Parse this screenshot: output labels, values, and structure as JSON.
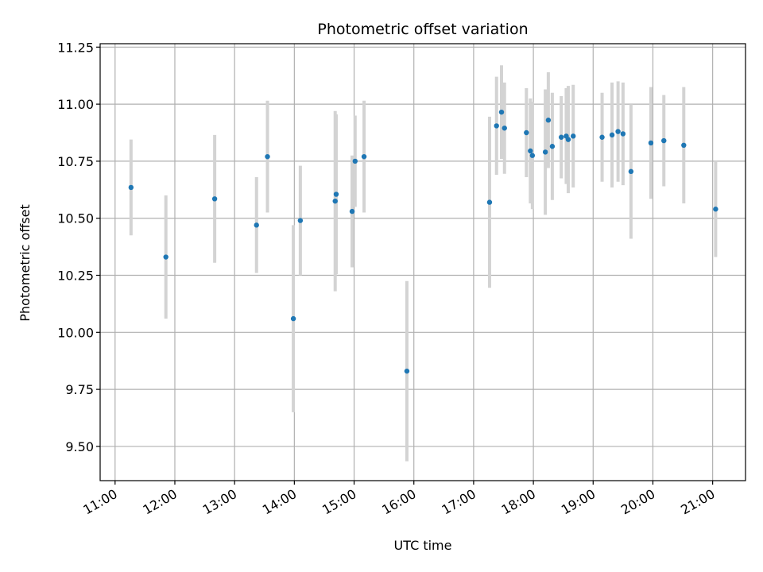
{
  "chart_data": {
    "type": "scatter",
    "title": "Photometric offset variation",
    "xlabel": "UTC time",
    "ylabel": "Photometric offset",
    "x_axis": "time",
    "xlim": [
      "10:45",
      "21:33"
    ],
    "ylim": [
      9.35,
      11.265
    ],
    "x_ticks": [
      "11:00",
      "12:00",
      "13:00",
      "14:00",
      "15:00",
      "16:00",
      "17:00",
      "18:00",
      "19:00",
      "20:00",
      "21:00"
    ],
    "y_ticks": [
      9.5,
      9.75,
      10.0,
      10.25,
      10.5,
      10.75,
      11.0,
      11.25
    ],
    "y_tick_labels": [
      "9.50",
      "9.75",
      "10.00",
      "10.25",
      "10.50",
      "10.75",
      "11.00",
      "11.25"
    ],
    "grid": true,
    "point_color": "#1f77b4",
    "errorbar_color": "#d3d3d3",
    "points": [
      {
        "x": "11:16",
        "y": 10.635,
        "err": 0.21
      },
      {
        "x": "11:51",
        "y": 10.33,
        "err": 0.27
      },
      {
        "x": "12:40",
        "y": 10.585,
        "err": 0.28
      },
      {
        "x": "13:22",
        "y": 10.47,
        "err": 0.21
      },
      {
        "x": "13:33",
        "y": 10.77,
        "err": 0.245
      },
      {
        "x": "13:59",
        "y": 10.06,
        "err": 0.41
      },
      {
        "x": "14:06",
        "y": 10.49,
        "err": 0.24
      },
      {
        "x": "14:41",
        "y": 10.575,
        "err": 0.395
      },
      {
        "x": "14:42",
        "y": 10.605,
        "err": 0.35
      },
      {
        "x": "14:58",
        "y": 10.53,
        "err": 0.245
      },
      {
        "x": "15:01",
        "y": 10.75,
        "err": 0.2
      },
      {
        "x": "15:10",
        "y": 10.77,
        "err": 0.245
      },
      {
        "x": "15:53",
        "y": 9.83,
        "err": 0.395
      },
      {
        "x": "17:16",
        "y": 10.57,
        "err": 0.375
      },
      {
        "x": "17:23",
        "y": 10.905,
        "err": 0.215
      },
      {
        "x": "17:28",
        "y": 10.965,
        "err": 0.205
      },
      {
        "x": "17:31",
        "y": 10.895,
        "err": 0.2
      },
      {
        "x": "17:53",
        "y": 10.875,
        "err": 0.195
      },
      {
        "x": "17:57",
        "y": 10.795,
        "err": 0.23
      },
      {
        "x": "17:59",
        "y": 10.775,
        "err": 0.235
      },
      {
        "x": "18:12",
        "y": 10.79,
        "err": 0.275
      },
      {
        "x": "18:15",
        "y": 10.93,
        "err": 0.21
      },
      {
        "x": "18:19",
        "y": 10.815,
        "err": 0.235
      },
      {
        "x": "18:28",
        "y": 10.855,
        "err": 0.18
      },
      {
        "x": "18:33",
        "y": 10.86,
        "err": 0.21
      },
      {
        "x": "18:35",
        "y": 10.845,
        "err": 0.235
      },
      {
        "x": "18:40",
        "y": 10.86,
        "err": 0.225
      },
      {
        "x": "19:09",
        "y": 10.855,
        "err": 0.195
      },
      {
        "x": "19:19",
        "y": 10.865,
        "err": 0.23
      },
      {
        "x": "19:25",
        "y": 10.88,
        "err": 0.22
      },
      {
        "x": "19:30",
        "y": 10.87,
        "err": 0.225
      },
      {
        "x": "19:38",
        "y": 10.705,
        "err": 0.295
      },
      {
        "x": "19:58",
        "y": 10.83,
        "err": 0.245
      },
      {
        "x": "20:11",
        "y": 10.84,
        "err": 0.2
      },
      {
        "x": "20:31",
        "y": 10.82,
        "err": 0.255
      },
      {
        "x": "21:03",
        "y": 10.54,
        "err": 0.21
      }
    ]
  }
}
